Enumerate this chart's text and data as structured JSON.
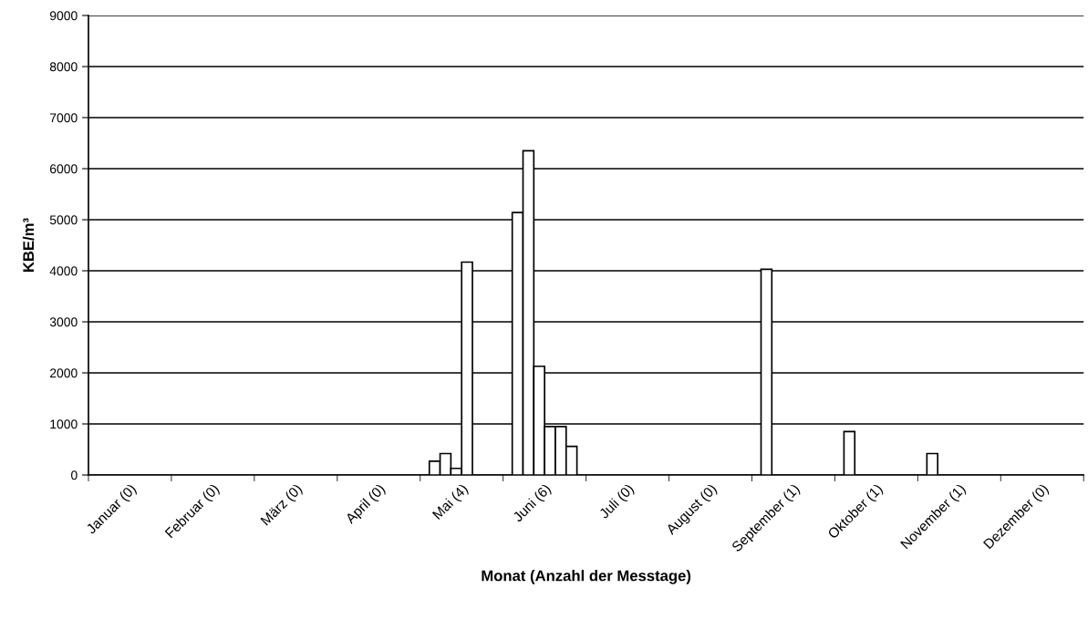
{
  "chart_data": {
    "type": "bar",
    "xlabel": "Monat (Anzahl der Messtage)",
    "ylabel": "KBE/m³",
    "categories": [
      "Januar (0)",
      "Februar (0)",
      "März (0)",
      "April (0)",
      "Mai (4)",
      "Juni (6)",
      "Juli (0)",
      "August (0)",
      "September (1)",
      "Oktober (1)",
      "November (1)",
      "Dezember (0)"
    ],
    "series": [
      {
        "color": "#ffffff",
        "values": [
          null,
          null,
          null,
          null,
          270,
          5140,
          null,
          null,
          4030,
          850,
          420,
          null
        ]
      },
      {
        "color": "#ffffff",
        "values": [
          null,
          null,
          null,
          null,
          420,
          6350,
          null,
          null,
          null,
          null,
          null,
          null
        ]
      },
      {
        "color": "#ffffff",
        "values": [
          null,
          null,
          null,
          null,
          130,
          2130,
          null,
          null,
          null,
          null,
          null,
          null
        ]
      },
      {
        "color": "#ffffff",
        "values": [
          null,
          null,
          null,
          null,
          4170,
          950,
          null,
          null,
          null,
          null,
          null,
          null
        ]
      },
      {
        "color": "#ffffff",
        "values": [
          null,
          null,
          null,
          null,
          null,
          950,
          null,
          null,
          null,
          null,
          null,
          null
        ]
      },
      {
        "color": "#ffffff",
        "values": [
          null,
          null,
          null,
          null,
          null,
          560,
          null,
          null,
          null,
          null,
          null,
          null
        ]
      }
    ],
    "ylim": [
      0,
      9000
    ],
    "yticks": [
      0,
      1000,
      2000,
      3000,
      4000,
      5000,
      6000,
      7000,
      8000,
      9000
    ],
    "grid": "y"
  }
}
